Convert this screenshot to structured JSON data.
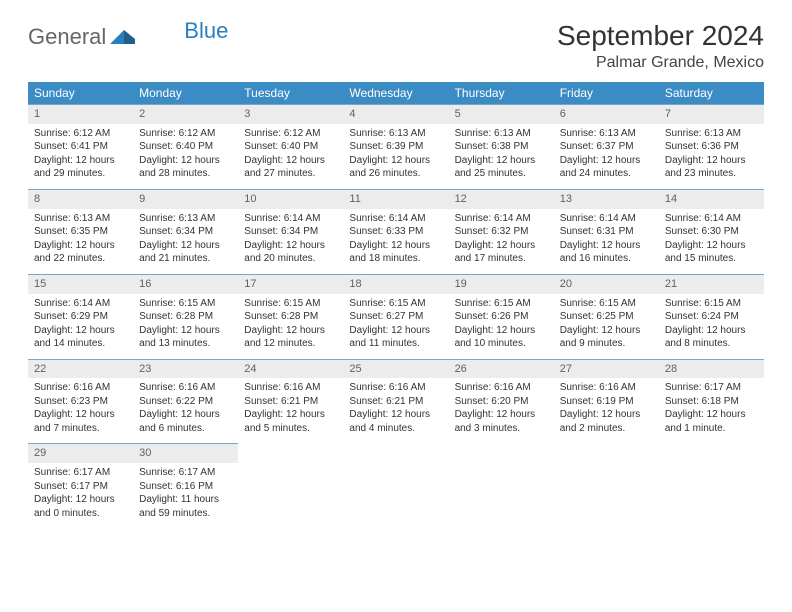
{
  "brand": {
    "part1": "General",
    "part2": "Blue"
  },
  "title": "September 2024",
  "location": "Palmar Grande, Mexico",
  "colors": {
    "header_bg": "#3b8bc4",
    "header_text": "#ffffff",
    "daynum_bg": "#ececec",
    "daynum_text": "#616161",
    "body_text": "#333333",
    "rule": "#78a6c4",
    "brand_gray": "#666666",
    "brand_blue": "#2a7fbf",
    "page_bg": "#ffffff"
  },
  "typography": {
    "title_fontsize": 28,
    "location_fontsize": 16,
    "dayhead_fontsize": 12,
    "cell_fontsize": 10,
    "font_family": "Arial"
  },
  "day_headers": [
    "Sunday",
    "Monday",
    "Tuesday",
    "Wednesday",
    "Thursday",
    "Friday",
    "Saturday"
  ],
  "weeks": [
    [
      {
        "n": "1",
        "l1": "Sunrise: 6:12 AM",
        "l2": "Sunset: 6:41 PM",
        "l3": "Daylight: 12 hours",
        "l4": "and 29 minutes."
      },
      {
        "n": "2",
        "l1": "Sunrise: 6:12 AM",
        "l2": "Sunset: 6:40 PM",
        "l3": "Daylight: 12 hours",
        "l4": "and 28 minutes."
      },
      {
        "n": "3",
        "l1": "Sunrise: 6:12 AM",
        "l2": "Sunset: 6:40 PM",
        "l3": "Daylight: 12 hours",
        "l4": "and 27 minutes."
      },
      {
        "n": "4",
        "l1": "Sunrise: 6:13 AM",
        "l2": "Sunset: 6:39 PM",
        "l3": "Daylight: 12 hours",
        "l4": "and 26 minutes."
      },
      {
        "n": "5",
        "l1": "Sunrise: 6:13 AM",
        "l2": "Sunset: 6:38 PM",
        "l3": "Daylight: 12 hours",
        "l4": "and 25 minutes."
      },
      {
        "n": "6",
        "l1": "Sunrise: 6:13 AM",
        "l2": "Sunset: 6:37 PM",
        "l3": "Daylight: 12 hours",
        "l4": "and 24 minutes."
      },
      {
        "n": "7",
        "l1": "Sunrise: 6:13 AM",
        "l2": "Sunset: 6:36 PM",
        "l3": "Daylight: 12 hours",
        "l4": "and 23 minutes."
      }
    ],
    [
      {
        "n": "8",
        "l1": "Sunrise: 6:13 AM",
        "l2": "Sunset: 6:35 PM",
        "l3": "Daylight: 12 hours",
        "l4": "and 22 minutes."
      },
      {
        "n": "9",
        "l1": "Sunrise: 6:13 AM",
        "l2": "Sunset: 6:34 PM",
        "l3": "Daylight: 12 hours",
        "l4": "and 21 minutes."
      },
      {
        "n": "10",
        "l1": "Sunrise: 6:14 AM",
        "l2": "Sunset: 6:34 PM",
        "l3": "Daylight: 12 hours",
        "l4": "and 20 minutes."
      },
      {
        "n": "11",
        "l1": "Sunrise: 6:14 AM",
        "l2": "Sunset: 6:33 PM",
        "l3": "Daylight: 12 hours",
        "l4": "and 18 minutes."
      },
      {
        "n": "12",
        "l1": "Sunrise: 6:14 AM",
        "l2": "Sunset: 6:32 PM",
        "l3": "Daylight: 12 hours",
        "l4": "and 17 minutes."
      },
      {
        "n": "13",
        "l1": "Sunrise: 6:14 AM",
        "l2": "Sunset: 6:31 PM",
        "l3": "Daylight: 12 hours",
        "l4": "and 16 minutes."
      },
      {
        "n": "14",
        "l1": "Sunrise: 6:14 AM",
        "l2": "Sunset: 6:30 PM",
        "l3": "Daylight: 12 hours",
        "l4": "and 15 minutes."
      }
    ],
    [
      {
        "n": "15",
        "l1": "Sunrise: 6:14 AM",
        "l2": "Sunset: 6:29 PM",
        "l3": "Daylight: 12 hours",
        "l4": "and 14 minutes."
      },
      {
        "n": "16",
        "l1": "Sunrise: 6:15 AM",
        "l2": "Sunset: 6:28 PM",
        "l3": "Daylight: 12 hours",
        "l4": "and 13 minutes."
      },
      {
        "n": "17",
        "l1": "Sunrise: 6:15 AM",
        "l2": "Sunset: 6:28 PM",
        "l3": "Daylight: 12 hours",
        "l4": "and 12 minutes."
      },
      {
        "n": "18",
        "l1": "Sunrise: 6:15 AM",
        "l2": "Sunset: 6:27 PM",
        "l3": "Daylight: 12 hours",
        "l4": "and 11 minutes."
      },
      {
        "n": "19",
        "l1": "Sunrise: 6:15 AM",
        "l2": "Sunset: 6:26 PM",
        "l3": "Daylight: 12 hours",
        "l4": "and 10 minutes."
      },
      {
        "n": "20",
        "l1": "Sunrise: 6:15 AM",
        "l2": "Sunset: 6:25 PM",
        "l3": "Daylight: 12 hours",
        "l4": "and 9 minutes."
      },
      {
        "n": "21",
        "l1": "Sunrise: 6:15 AM",
        "l2": "Sunset: 6:24 PM",
        "l3": "Daylight: 12 hours",
        "l4": "and 8 minutes."
      }
    ],
    [
      {
        "n": "22",
        "l1": "Sunrise: 6:16 AM",
        "l2": "Sunset: 6:23 PM",
        "l3": "Daylight: 12 hours",
        "l4": "and 7 minutes."
      },
      {
        "n": "23",
        "l1": "Sunrise: 6:16 AM",
        "l2": "Sunset: 6:22 PM",
        "l3": "Daylight: 12 hours",
        "l4": "and 6 minutes."
      },
      {
        "n": "24",
        "l1": "Sunrise: 6:16 AM",
        "l2": "Sunset: 6:21 PM",
        "l3": "Daylight: 12 hours",
        "l4": "and 5 minutes."
      },
      {
        "n": "25",
        "l1": "Sunrise: 6:16 AM",
        "l2": "Sunset: 6:21 PM",
        "l3": "Daylight: 12 hours",
        "l4": "and 4 minutes."
      },
      {
        "n": "26",
        "l1": "Sunrise: 6:16 AM",
        "l2": "Sunset: 6:20 PM",
        "l3": "Daylight: 12 hours",
        "l4": "and 3 minutes."
      },
      {
        "n": "27",
        "l1": "Sunrise: 6:16 AM",
        "l2": "Sunset: 6:19 PM",
        "l3": "Daylight: 12 hours",
        "l4": "and 2 minutes."
      },
      {
        "n": "28",
        "l1": "Sunrise: 6:17 AM",
        "l2": "Sunset: 6:18 PM",
        "l3": "Daylight: 12 hours",
        "l4": "and 1 minute."
      }
    ],
    [
      {
        "n": "29",
        "l1": "Sunrise: 6:17 AM",
        "l2": "Sunset: 6:17 PM",
        "l3": "Daylight: 12 hours",
        "l4": "and 0 minutes."
      },
      {
        "n": "30",
        "l1": "Sunrise: 6:17 AM",
        "l2": "Sunset: 6:16 PM",
        "l3": "Daylight: 11 hours",
        "l4": "and 59 minutes."
      },
      {
        "empty": true
      },
      {
        "empty": true
      },
      {
        "empty": true
      },
      {
        "empty": true
      },
      {
        "empty": true
      }
    ]
  ]
}
